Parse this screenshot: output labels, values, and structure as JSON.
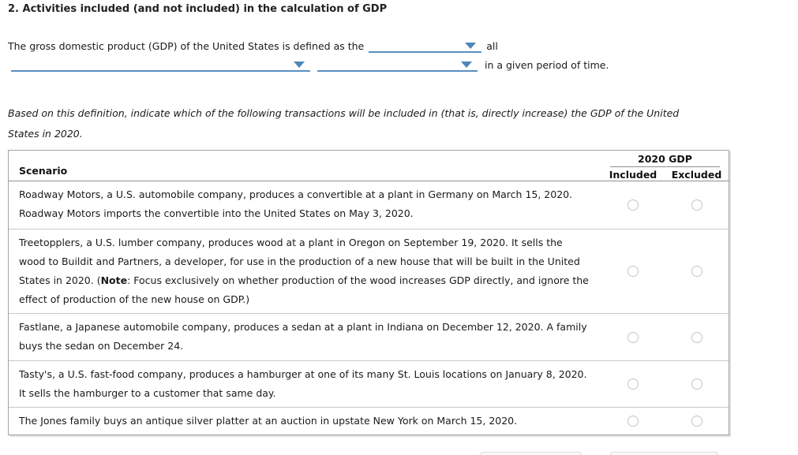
{
  "page": {
    "title": "2. Activities included (and not included) in the calculation of GDP"
  },
  "definition": {
    "lead_text": "The gross domestic product (GDP) of the United States is defined as the",
    "after_first_dropdown": "all",
    "after_last_dropdown": "in a given period of time."
  },
  "instruction": "Based on this definition, indicate which of the following transactions will be included in (that is, directly increase) the GDP of the United States in 2020.",
  "table": {
    "scenario_header": "Scenario",
    "group_header": "2020 GDP",
    "columns": {
      "included": "Included",
      "excluded": "Excluded"
    },
    "rows": [
      {
        "scenario_parts": [
          {
            "t": "Roadway Motors, a U.S. automobile company, produces a convertible at a plant in Germany on March 15, 2020. Roadway Motors imports the convertible into the United States on May 3, 2020."
          }
        ],
        "included_selected": false,
        "excluded_selected": false
      },
      {
        "scenario_parts": [
          {
            "t": "Treetopplers, a U.S. lumber company, produces wood at a plant in Oregon on September 19, 2020. It sells the wood to Buildit and Partners, a developer, for use in the production of a new house that will be built in the United States in 2020. ("
          },
          {
            "t": "Note",
            "b": true
          },
          {
            "t": ": Focus exclusively on whether production of the wood increases GDP directly, and ignore the effect of production of the new house on GDP.)"
          }
        ],
        "included_selected": false,
        "excluded_selected": false
      },
      {
        "scenario_parts": [
          {
            "t": "Fastlane, a Japanese automobile company, produces a sedan at a plant in Indiana on December 12, 2020. A family buys the sedan on December 24."
          }
        ],
        "included_selected": false,
        "excluded_selected": false
      },
      {
        "scenario_parts": [
          {
            "t": "Tasty's, a U.S. fast-food company, produces a hamburger at one of its many St. Louis locations on January 8, 2020. It sells the hamburger to a customer that same day."
          }
        ],
        "included_selected": false,
        "excluded_selected": false
      },
      {
        "scenario_parts": [
          {
            "t": "The Jones family buys an antique silver platter at an auction in upstate New York on March 15, 2020."
          }
        ],
        "included_selected": false,
        "excluded_selected": false
      }
    ]
  },
  "colors": {
    "dropdown_underline": "#5a8fc0",
    "dropdown_arrow": "#4d86b8",
    "table_border": "#a3a3a3",
    "row_divider": "#c9c9c9",
    "text": "#1a1a1a"
  }
}
